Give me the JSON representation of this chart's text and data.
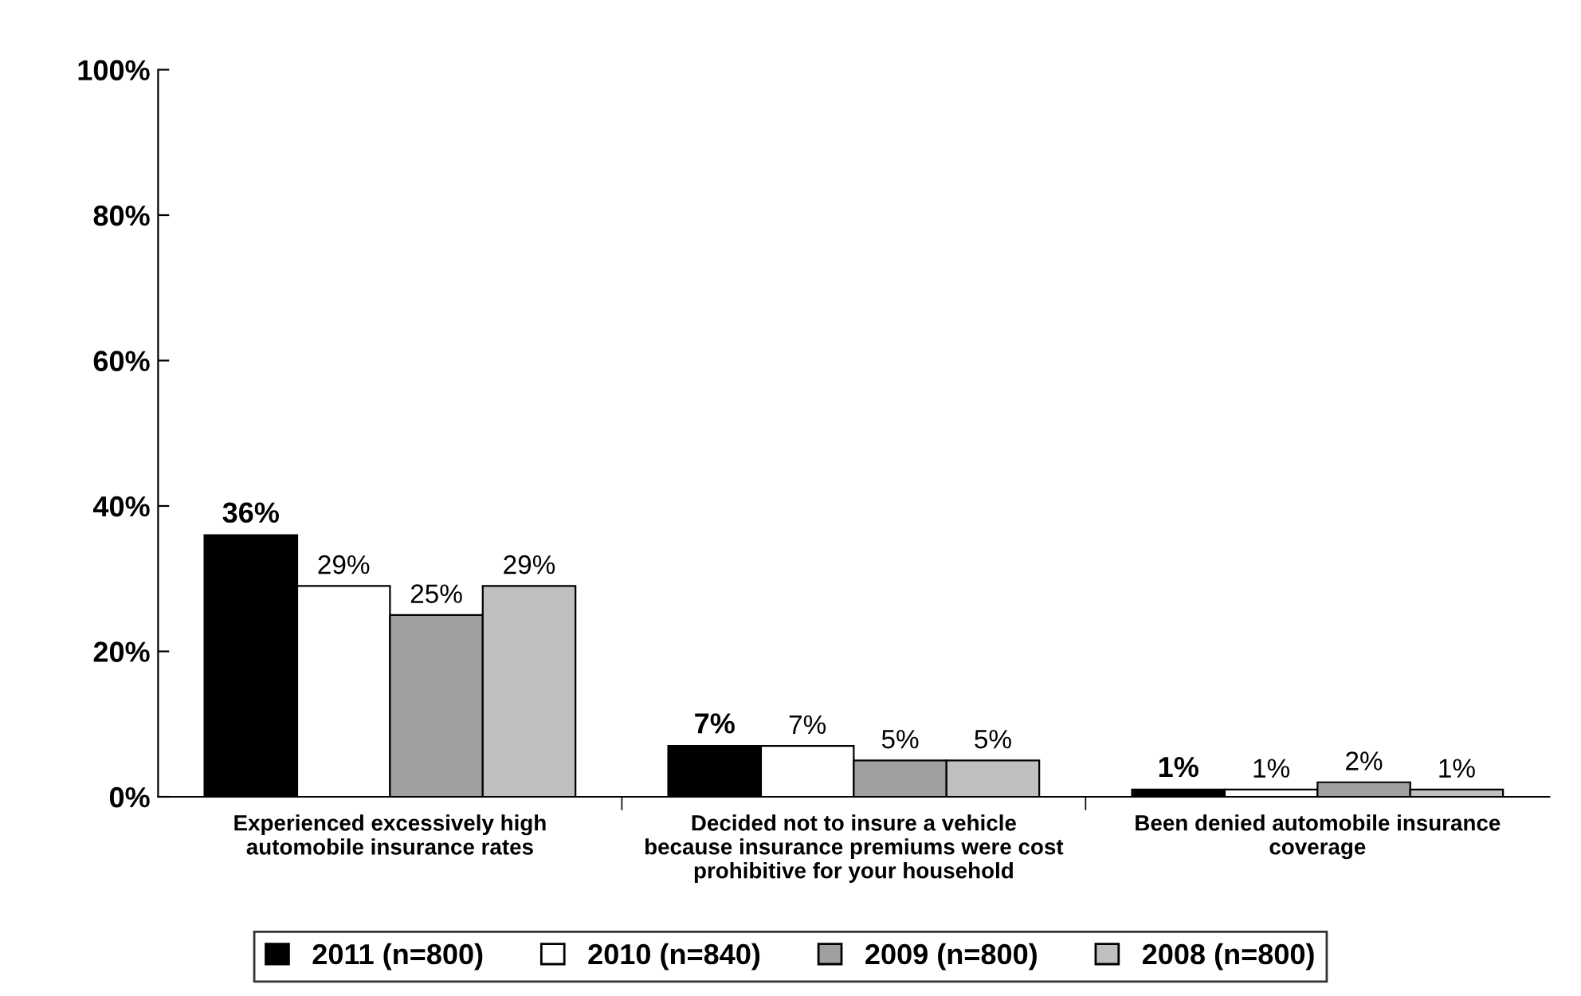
{
  "chart_data": {
    "type": "bar",
    "categories": [
      "Experienced excessively high automobile insurance rates",
      "Decided not to insure a vehicle because insurance premiums were cost prohibitive for your household",
      "Been denied automobile insurance coverage"
    ],
    "series": [
      {
        "name": "2011 (n=800)",
        "color": "#000000",
        "values": [
          36,
          7,
          1
        ],
        "value_labels": [
          "36%",
          "7%",
          "1%"
        ]
      },
      {
        "name": "2010 (n=840)",
        "color": "#ffffff",
        "values": [
          29,
          7,
          1
        ],
        "value_labels": [
          "29%",
          "7%",
          "1%"
        ]
      },
      {
        "name": "2009 (n=800)",
        "color": "#a0a0a0",
        "values": [
          25,
          5,
          2
        ],
        "value_labels": [
          "25%",
          "5%",
          "2%"
        ]
      },
      {
        "name": "2008 (n=800)",
        "color": "#c0c0c0",
        "values": [
          29,
          5,
          1
        ],
        "value_labels": [
          "29%",
          "5%",
          "1%"
        ]
      }
    ],
    "ylim": [
      0,
      100
    ],
    "yticks": [
      {
        "value": 0,
        "label": "0%"
      },
      {
        "value": 20,
        "label": "20%"
      },
      {
        "value": 40,
        "label": "40%"
      },
      {
        "value": 60,
        "label": "60%"
      },
      {
        "value": 80,
        "label": "80%"
      },
      {
        "value": 100,
        "label": "100%"
      }
    ],
    "grid": false,
    "legend": "bottom"
  }
}
